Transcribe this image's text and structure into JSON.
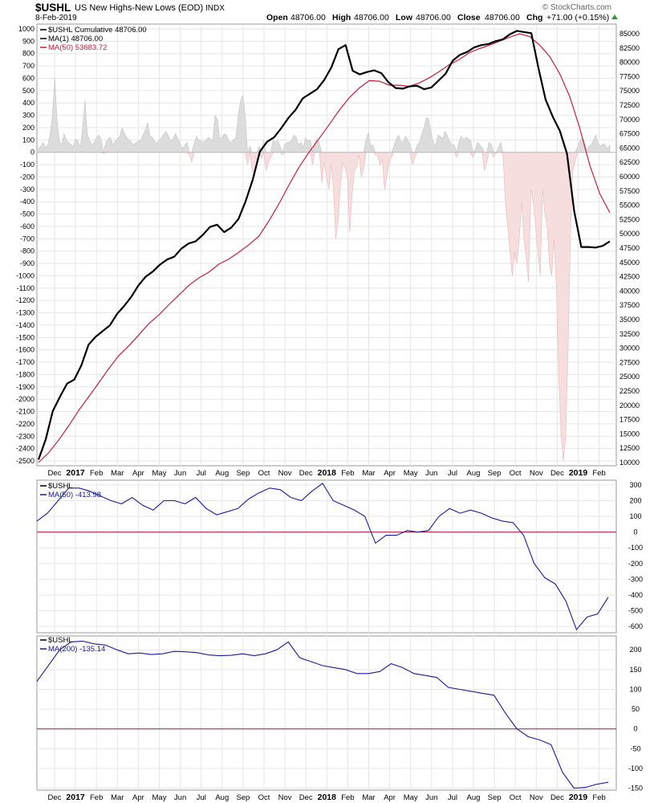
{
  "header": {
    "symbol": "$USHL",
    "name": "US New Highs-New Lows (EOD)",
    "exchange": "INDX",
    "date": "8-Feb-2019",
    "watermark": "© StockCharts.com",
    "ohlc": {
      "open_label": "Open",
      "open": "48706.00",
      "high_label": "High",
      "high": "48706.00",
      "low_label": "Low",
      "low": "48706.00",
      "close_label": "Close",
      "close": "48706.00",
      "chg_label": "Chg",
      "chg": "+71.00 (+0.15%)"
    }
  },
  "legend_main": [
    {
      "text": "$USHL Cumulative 48706.00",
      "color": "#000000"
    },
    {
      "text": "MA(1) 48706.00",
      "color": "#000000"
    },
    {
      "text": "MA(50) 53683.72",
      "color": "#cc1c3c"
    }
  ],
  "legend_p2": [
    {
      "text": "$USHL",
      "color": "#000000"
    },
    {
      "text": "MA(50) -413.98",
      "color": "#1a1aa0"
    }
  ],
  "legend_p3": [
    {
      "text": "$USHL",
      "color": "#000000"
    },
    {
      "text": "MA(200) -135.14",
      "color": "#1a1aa0"
    }
  ],
  "colors": {
    "cumulative": "#000000",
    "ma50_main": "#cc1c3c",
    "pos_fill": "#dcdcdc",
    "neg_fill": "#f6dede",
    "ma_lower": "#1a1aa0",
    "zero_line": "#b0143c",
    "grid": "#e6e6e6"
  },
  "x_axis": {
    "labels": [
      {
        "t": "Dec",
        "b": false
      },
      {
        "t": "2017",
        "b": true
      },
      {
        "t": "Feb",
        "b": false
      },
      {
        "t": "Mar",
        "b": false
      },
      {
        "t": "Apr",
        "b": false
      },
      {
        "t": "May",
        "b": false
      },
      {
        "t": "Jun",
        "b": false
      },
      {
        "t": "Jul",
        "b": false
      },
      {
        "t": "Aug",
        "b": false
      },
      {
        "t": "Sep",
        "b": false
      },
      {
        "t": "Oct",
        "b": false
      },
      {
        "t": "Nov",
        "b": false
      },
      {
        "t": "Dec",
        "b": false
      },
      {
        "t": "2018",
        "b": true
      },
      {
        "t": "Feb",
        "b": false
      },
      {
        "t": "Mar",
        "b": false
      },
      {
        "t": "Apr",
        "b": false
      },
      {
        "t": "May",
        "b": false
      },
      {
        "t": "Jun",
        "b": false
      },
      {
        "t": "Jul",
        "b": false
      },
      {
        "t": "Aug",
        "b": false
      },
      {
        "t": "Sep",
        "b": false
      },
      {
        "t": "Oct",
        "b": false
      },
      {
        "t": "Nov",
        "b": false
      },
      {
        "t": "Dec",
        "b": false
      },
      {
        "t": "2019",
        "b": true
      },
      {
        "t": "Feb",
        "b": false
      }
    ]
  },
  "chart_data": [
    {
      "type": "area",
      "title": "$USHL US New Highs-New Lows (EOD)",
      "x": "Nov 2016 – 8 Feb 2019 (daily)",
      "left_axis": {
        "range": [
          -2500,
          1000
        ],
        "ticks": [
          1000,
          900,
          800,
          700,
          600,
          500,
          400,
          300,
          200,
          100,
          0,
          -100,
          -200,
          -300,
          -400,
          -500,
          -600,
          -700,
          -800,
          -900,
          -1000,
          -1100,
          -1200,
          -1300,
          -1400,
          -1500,
          -1600,
          -1700,
          -1800,
          -1900,
          -2000,
          -2100,
          -2200,
          -2300,
          -2400,
          -2500
        ]
      },
      "right_axis": {
        "range": [
          10000,
          85000
        ],
        "ticks": [
          85000,
          82500,
          80000,
          77500,
          75000,
          72500,
          70000,
          67500,
          65000,
          62500,
          60000,
          57500,
          55000,
          52500,
          50000,
          47500,
          45000,
          42500,
          40000,
          37500,
          35000,
          32500,
          30000,
          27500,
          25000,
          22500,
          20000,
          17500,
          15000,
          12500,
          10000
        ]
      },
      "daily_histogram": [
        30,
        50,
        80,
        40,
        60,
        150,
        300,
        600,
        250,
        90,
        60,
        150,
        100,
        80,
        60,
        50,
        110,
        90,
        40,
        200,
        420,
        150,
        100,
        60,
        80,
        120,
        140,
        100,
        -10,
        80,
        110,
        120,
        60,
        90,
        110,
        130,
        200,
        150,
        120,
        100,
        80,
        60,
        80,
        90,
        100,
        140,
        180,
        240,
        130,
        120,
        90,
        70,
        100,
        120,
        150,
        170,
        130,
        90,
        110,
        150,
        110,
        70,
        30,
        60,
        80,
        -20,
        -80,
        70,
        130,
        100,
        90,
        80,
        100,
        120,
        110,
        90,
        300,
        270,
        110,
        120,
        150,
        140,
        90,
        80,
        100,
        120,
        300,
        420,
        460,
        300,
        -100,
        50,
        -150,
        -200,
        -90,
        50,
        -50,
        100,
        -150,
        -80,
        -40,
        100,
        80,
        100,
        50,
        -20,
        60,
        80,
        80,
        100,
        140,
        120,
        60,
        80,
        40,
        120,
        90,
        100,
        -100,
        80,
        110,
        70,
        -250,
        -80,
        -200,
        -300,
        -100,
        -300,
        -700,
        -550,
        -260,
        -90,
        -120,
        -200,
        -650,
        -350,
        -150,
        -120,
        -20,
        -200,
        -130,
        100,
        160,
        50,
        60,
        -20,
        -30,
        -100,
        -60,
        -300,
        -200,
        -80,
        -40,
        50,
        100,
        140,
        90,
        80,
        130,
        100,
        60,
        -100,
        -40,
        60,
        80,
        150,
        200,
        280,
        270,
        160,
        80,
        50,
        140,
        130,
        110,
        170,
        140,
        90,
        60,
        60,
        -40,
        80,
        130,
        100,
        120,
        110,
        100,
        -40,
        20,
        80,
        60,
        40,
        -150,
        -80,
        80,
        60,
        -40,
        -10,
        40,
        80,
        -20,
        -400,
        -600,
        -800,
        -1000,
        -800,
        -900,
        -700,
        -400,
        -700,
        -850,
        -1050,
        -300,
        -400,
        -600,
        -800,
        -1000,
        -300,
        -500,
        -600,
        -900,
        -1000,
        -700,
        -1100,
        -1800,
        -2300,
        -2500,
        -2300,
        -1600,
        -700,
        -150,
        -80,
        40,
        90,
        120,
        80,
        20,
        50,
        60,
        100,
        140,
        70,
        50,
        70,
        60,
        30,
        60
      ],
      "cumulative": [
        10500,
        14000,
        19000,
        21500,
        23800,
        24500,
        27000,
        30600,
        32000,
        33000,
        34000,
        36000,
        37400,
        39000,
        41000,
        42500,
        43400,
        44600,
        45500,
        46000,
        47400,
        48300,
        48700,
        49800,
        51200,
        51600,
        50300,
        51100,
        52600,
        55700,
        59500,
        64400,
        66100,
        66900,
        68500,
        70300,
        71700,
        73700,
        74500,
        75300,
        76900,
        79100,
        82300,
        83000,
        78500,
        77900,
        78300,
        78600,
        78100,
        76500,
        75500,
        75400,
        75800,
        75900,
        75300,
        75600,
        76800,
        78000,
        80300,
        81300,
        81800,
        82600,
        83000,
        83200,
        83700,
        84000,
        84900,
        85500,
        85300,
        85100,
        79000,
        73500,
        70500,
        68000,
        64000,
        54000,
        47700,
        47700,
        47600,
        47900,
        48700
      ],
      "ma50_main": [
        10000,
        11700,
        13900,
        16400,
        19100,
        21500,
        23900,
        26400,
        28700,
        30400,
        32300,
        34300,
        35800,
        37600,
        39300,
        41000,
        42300,
        43300,
        44700,
        45600,
        46800,
        48100,
        49600,
        52300,
        55300,
        58600,
        61700,
        64300,
        66700,
        69100,
        71600,
        73800,
        75500,
        76800,
        76700,
        76000,
        76000,
        75800,
        76400,
        77300,
        78400,
        79600,
        80500,
        81700,
        82400,
        83000,
        83700,
        84400,
        85000,
        84500,
        83000,
        81000,
        78000,
        74000,
        68500,
        62000,
        57000,
        53700
      ],
      "series": [
        {
          "name": "$USHL Cumulative",
          "axis": "right"
        },
        {
          "name": "MA(1)",
          "axis": "right"
        },
        {
          "name": "MA(50)",
          "axis": "right"
        }
      ]
    },
    {
      "type": "line",
      "series": [
        {
          "name": "MA(50)",
          "last": -413.98
        }
      ],
      "ylim": [
        -640,
        330
      ],
      "ticks": [
        300,
        200,
        100,
        0,
        -100,
        -200,
        -300,
        -400,
        -500,
        -600
      ],
      "values": [
        70,
        120,
        200,
        280,
        280,
        260,
        230,
        200,
        180,
        220,
        170,
        140,
        200,
        200,
        180,
        220,
        150,
        110,
        130,
        150,
        210,
        250,
        280,
        270,
        220,
        200,
        260,
        310,
        200,
        170,
        140,
        100,
        -70,
        -20,
        -20,
        10,
        0,
        10,
        100,
        150,
        120,
        140,
        120,
        90,
        70,
        60,
        -20,
        -200,
        -290,
        -330,
        -440,
        -620,
        -540,
        -520,
        -414
      ]
    },
    {
      "type": "line",
      "series": [
        {
          "name": "MA(200)",
          "last": -135.14
        }
      ],
      "ylim": [
        -155,
        235
      ],
      "ticks": [
        200,
        150,
        100,
        50,
        0,
        -50,
        -100,
        -150
      ],
      "values": [
        120,
        160,
        200,
        220,
        222,
        215,
        212,
        200,
        190,
        192,
        188,
        190,
        196,
        195,
        193,
        187,
        185,
        186,
        190,
        185,
        190,
        200,
        220,
        180,
        170,
        160,
        155,
        150,
        140,
        140,
        145,
        165,
        155,
        140,
        135,
        130,
        105,
        100,
        95,
        90,
        85,
        40,
        0,
        -20,
        -28,
        -40,
        -110,
        -150,
        -148,
        -140,
        -135
      ]
    }
  ]
}
